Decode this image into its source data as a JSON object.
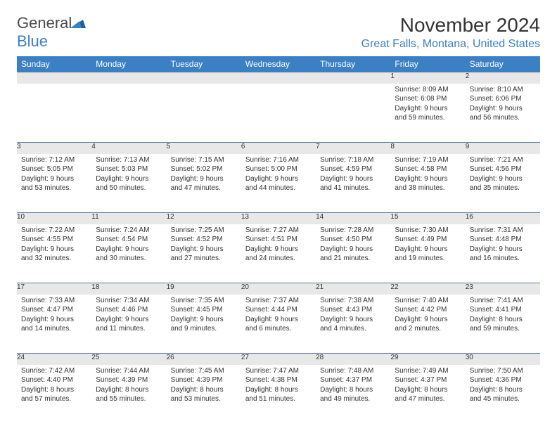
{
  "logo": {
    "general": "General",
    "blue": "Blue"
  },
  "title": "November 2024",
  "location": "Great Falls, Montana, United States",
  "header_bg": "#3b7fc4",
  "daynum_bg": "#e8e8e8",
  "days": [
    "Sunday",
    "Monday",
    "Tuesday",
    "Wednesday",
    "Thursday",
    "Friday",
    "Saturday"
  ],
  "weeks": [
    [
      null,
      null,
      null,
      null,
      null,
      {
        "n": "1",
        "sr": "Sunrise: 8:09 AM",
        "ss": "Sunset: 6:08 PM",
        "dl": "Daylight: 9 hours and 59 minutes."
      },
      {
        "n": "2",
        "sr": "Sunrise: 8:10 AM",
        "ss": "Sunset: 6:06 PM",
        "dl": "Daylight: 9 hours and 56 minutes."
      }
    ],
    [
      {
        "n": "3",
        "sr": "Sunrise: 7:12 AM",
        "ss": "Sunset: 5:05 PM",
        "dl": "Daylight: 9 hours and 53 minutes."
      },
      {
        "n": "4",
        "sr": "Sunrise: 7:13 AM",
        "ss": "Sunset: 5:03 PM",
        "dl": "Daylight: 9 hours and 50 minutes."
      },
      {
        "n": "5",
        "sr": "Sunrise: 7:15 AM",
        "ss": "Sunset: 5:02 PM",
        "dl": "Daylight: 9 hours and 47 minutes."
      },
      {
        "n": "6",
        "sr": "Sunrise: 7:16 AM",
        "ss": "Sunset: 5:00 PM",
        "dl": "Daylight: 9 hours and 44 minutes."
      },
      {
        "n": "7",
        "sr": "Sunrise: 7:18 AM",
        "ss": "Sunset: 4:59 PM",
        "dl": "Daylight: 9 hours and 41 minutes."
      },
      {
        "n": "8",
        "sr": "Sunrise: 7:19 AM",
        "ss": "Sunset: 4:58 PM",
        "dl": "Daylight: 9 hours and 38 minutes."
      },
      {
        "n": "9",
        "sr": "Sunrise: 7:21 AM",
        "ss": "Sunset: 4:56 PM",
        "dl": "Daylight: 9 hours and 35 minutes."
      }
    ],
    [
      {
        "n": "10",
        "sr": "Sunrise: 7:22 AM",
        "ss": "Sunset: 4:55 PM",
        "dl": "Daylight: 9 hours and 32 minutes."
      },
      {
        "n": "11",
        "sr": "Sunrise: 7:24 AM",
        "ss": "Sunset: 4:54 PM",
        "dl": "Daylight: 9 hours and 30 minutes."
      },
      {
        "n": "12",
        "sr": "Sunrise: 7:25 AM",
        "ss": "Sunset: 4:52 PM",
        "dl": "Daylight: 9 hours and 27 minutes."
      },
      {
        "n": "13",
        "sr": "Sunrise: 7:27 AM",
        "ss": "Sunset: 4:51 PM",
        "dl": "Daylight: 9 hours and 24 minutes."
      },
      {
        "n": "14",
        "sr": "Sunrise: 7:28 AM",
        "ss": "Sunset: 4:50 PM",
        "dl": "Daylight: 9 hours and 21 minutes."
      },
      {
        "n": "15",
        "sr": "Sunrise: 7:30 AM",
        "ss": "Sunset: 4:49 PM",
        "dl": "Daylight: 9 hours and 19 minutes."
      },
      {
        "n": "16",
        "sr": "Sunrise: 7:31 AM",
        "ss": "Sunset: 4:48 PM",
        "dl": "Daylight: 9 hours and 16 minutes."
      }
    ],
    [
      {
        "n": "17",
        "sr": "Sunrise: 7:33 AM",
        "ss": "Sunset: 4:47 PM",
        "dl": "Daylight: 9 hours and 14 minutes."
      },
      {
        "n": "18",
        "sr": "Sunrise: 7:34 AM",
        "ss": "Sunset: 4:46 PM",
        "dl": "Daylight: 9 hours and 11 minutes."
      },
      {
        "n": "19",
        "sr": "Sunrise: 7:35 AM",
        "ss": "Sunset: 4:45 PM",
        "dl": "Daylight: 9 hours and 9 minutes."
      },
      {
        "n": "20",
        "sr": "Sunrise: 7:37 AM",
        "ss": "Sunset: 4:44 PM",
        "dl": "Daylight: 9 hours and 6 minutes."
      },
      {
        "n": "21",
        "sr": "Sunrise: 7:38 AM",
        "ss": "Sunset: 4:43 PM",
        "dl": "Daylight: 9 hours and 4 minutes."
      },
      {
        "n": "22",
        "sr": "Sunrise: 7:40 AM",
        "ss": "Sunset: 4:42 PM",
        "dl": "Daylight: 9 hours and 2 minutes."
      },
      {
        "n": "23",
        "sr": "Sunrise: 7:41 AM",
        "ss": "Sunset: 4:41 PM",
        "dl": "Daylight: 8 hours and 59 minutes."
      }
    ],
    [
      {
        "n": "24",
        "sr": "Sunrise: 7:42 AM",
        "ss": "Sunset: 4:40 PM",
        "dl": "Daylight: 8 hours and 57 minutes."
      },
      {
        "n": "25",
        "sr": "Sunrise: 7:44 AM",
        "ss": "Sunset: 4:39 PM",
        "dl": "Daylight: 8 hours and 55 minutes."
      },
      {
        "n": "26",
        "sr": "Sunrise: 7:45 AM",
        "ss": "Sunset: 4:39 PM",
        "dl": "Daylight: 8 hours and 53 minutes."
      },
      {
        "n": "27",
        "sr": "Sunrise: 7:47 AM",
        "ss": "Sunset: 4:38 PM",
        "dl": "Daylight: 8 hours and 51 minutes."
      },
      {
        "n": "28",
        "sr": "Sunrise: 7:48 AM",
        "ss": "Sunset: 4:37 PM",
        "dl": "Daylight: 8 hours and 49 minutes."
      },
      {
        "n": "29",
        "sr": "Sunrise: 7:49 AM",
        "ss": "Sunset: 4:37 PM",
        "dl": "Daylight: 8 hours and 47 minutes."
      },
      {
        "n": "30",
        "sr": "Sunrise: 7:50 AM",
        "ss": "Sunset: 4:36 PM",
        "dl": "Daylight: 8 hours and 45 minutes."
      }
    ]
  ]
}
